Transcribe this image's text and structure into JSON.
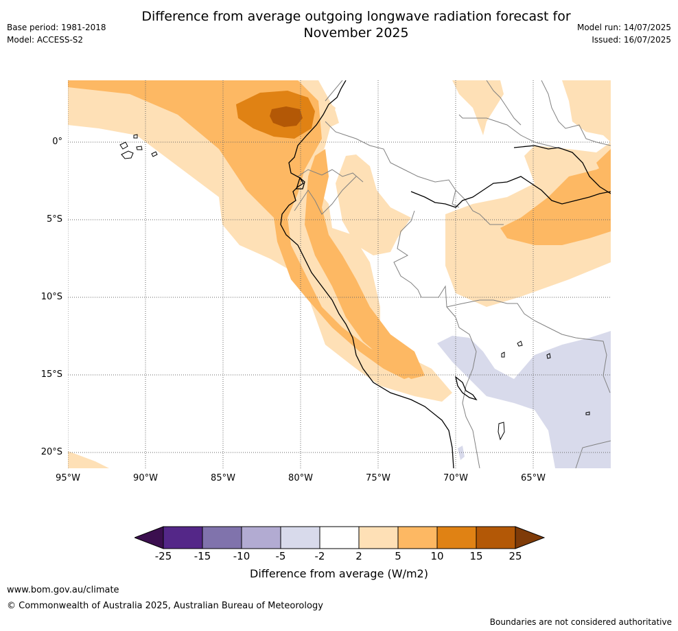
{
  "title": "Difference from average outgoing longwave radiation forecast for\nNovember 2025",
  "meta_left": {
    "base_period": "Base period: 1981-2018",
    "model": "Model: ACCESS-S2"
  },
  "meta_right": {
    "model_run": "Model run: 14/07/2025",
    "issued": "Issued: 16/07/2025"
  },
  "latitude_labels": [
    "0°",
    "5°S",
    "10°S",
    "15°S",
    "20°S"
  ],
  "longitude_labels": [
    "95°W",
    "90°W",
    "85°W",
    "80°W",
    "75°W",
    "70°W",
    "65°W"
  ],
  "legend": {
    "title": "Difference from average (W/m2)",
    "ticks": [
      "-25",
      "-15",
      "-10",
      "-5",
      "-2",
      "2",
      "5",
      "10",
      "15",
      "25"
    ],
    "colors": {
      "below_-25": "#3b0f4f",
      "-25_-15": "#542788",
      "-15_-10": "#8073ac",
      "-10_-5": "#b2abd2",
      "-5_-2": "#d8daeb",
      "-2_2": "#ffffff",
      "2_5": "#fee0b6",
      "5_10": "#fdb863",
      "10_15": "#e08214",
      "15_25": "#b35806",
      "above_25": "#7f3b08"
    }
  },
  "footer": {
    "url": "www.bom.gov.au/climate",
    "copyright": "© Commonwealth of Australia 2025, Australian Bureau of Meteorology",
    "disclaimer": "Boundaries are not considered authoritative"
  }
}
